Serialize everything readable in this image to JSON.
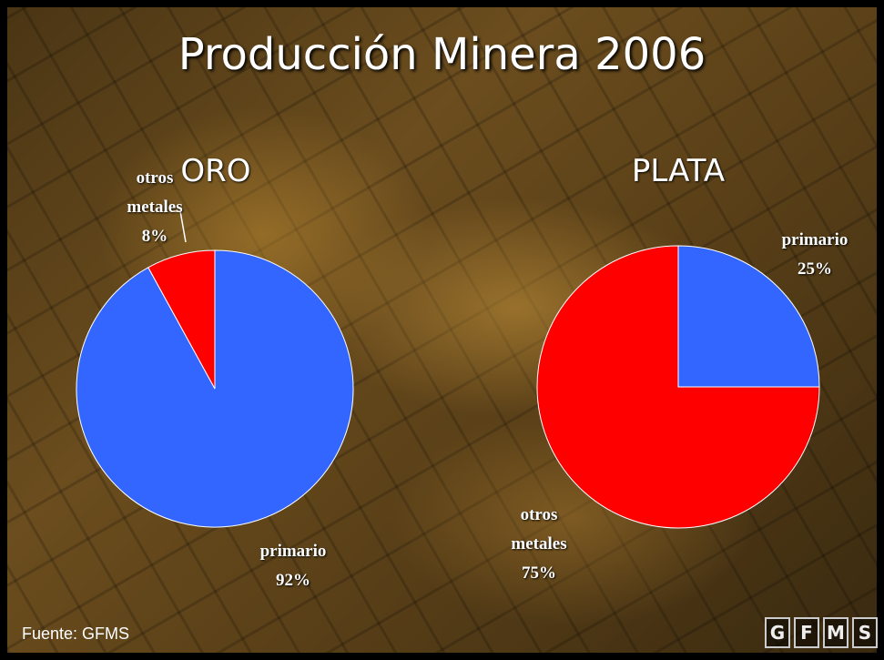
{
  "slide": {
    "title": "Producción Minera 2006",
    "source": "Fuente: GFMS",
    "logo": [
      "G",
      "F",
      "M",
      "S"
    ]
  },
  "chart_data": [
    {
      "type": "pie",
      "title": "ORO",
      "categories": [
        "primario",
        "otros metales"
      ],
      "values": [
        92,
        8
      ],
      "value_labels": [
        "92%",
        "8%"
      ],
      "colors": [
        "#3366ff",
        "#ff0000"
      ]
    },
    {
      "type": "pie",
      "title": "PLATA",
      "categories": [
        "primario",
        "otros metales"
      ],
      "values": [
        25,
        75
      ],
      "value_labels": [
        "25%",
        "75%"
      ],
      "colors": [
        "#3366ff",
        "#ff0000"
      ]
    }
  ]
}
